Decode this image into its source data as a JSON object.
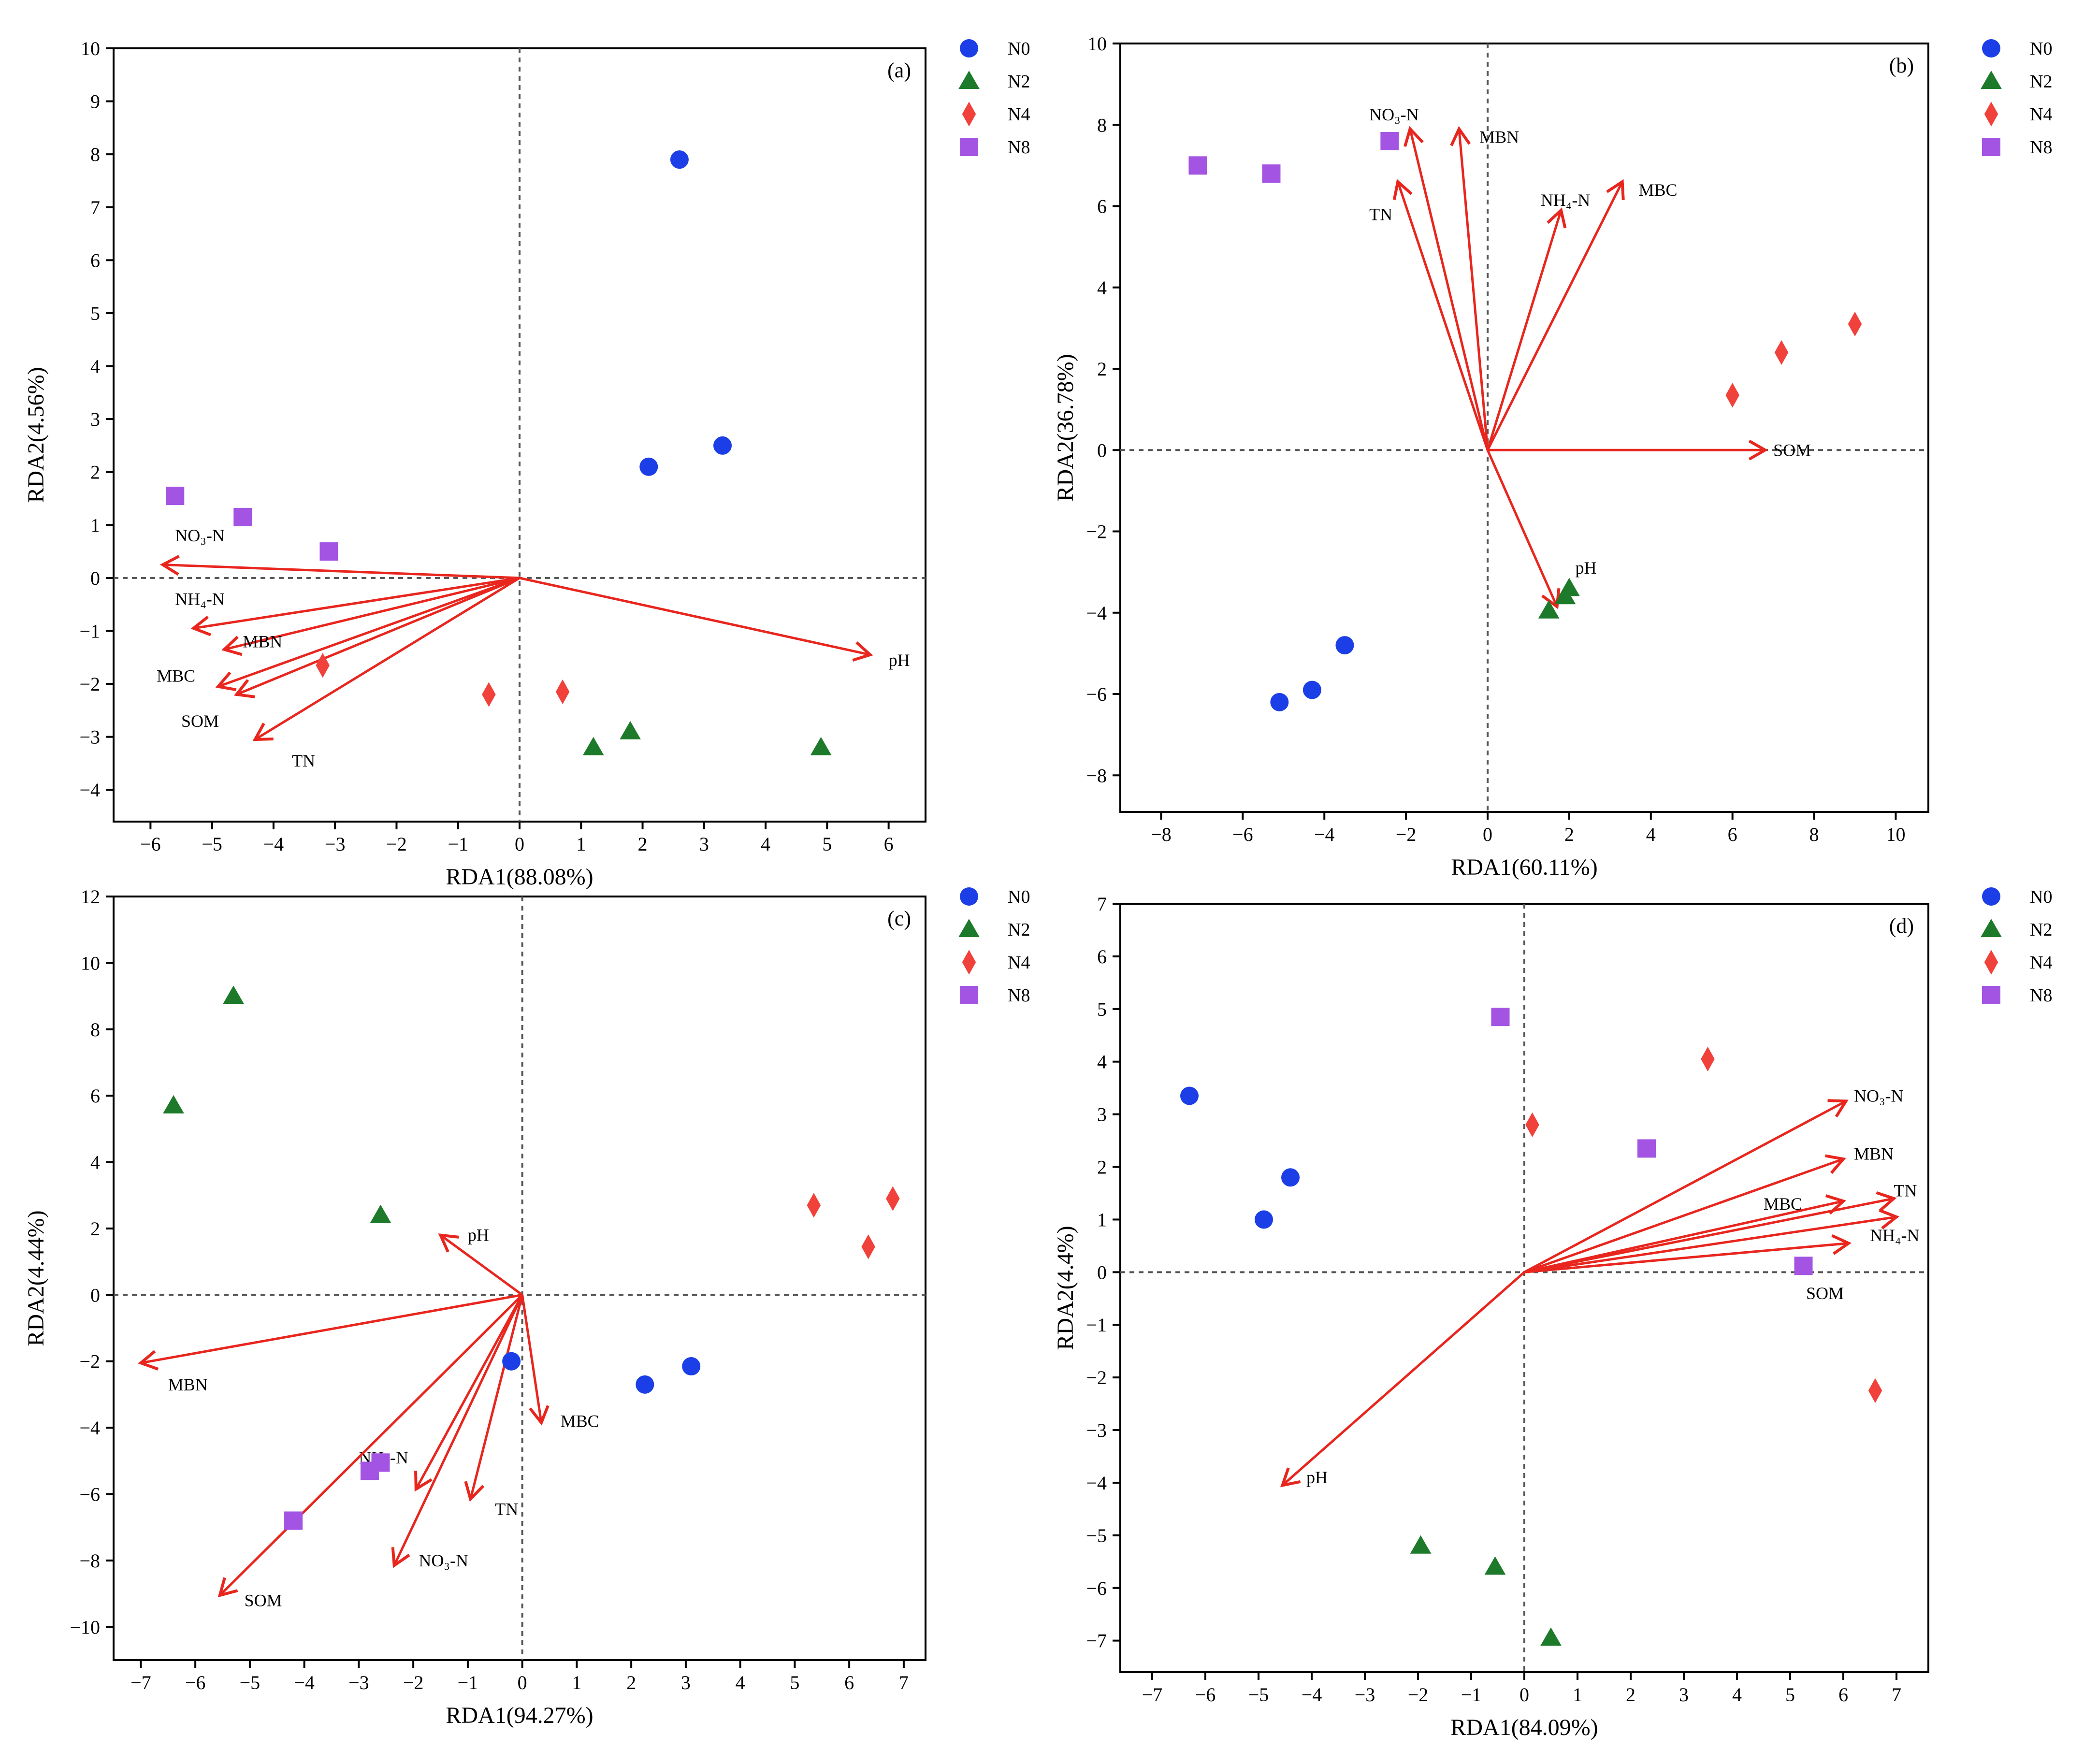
{
  "colors": {
    "N0": "#1c3ee6",
    "N2": "#1d7a2a",
    "N4": "#f0413a",
    "N8": "#a354e3",
    "arrow": "#e8261e",
    "axis": "#000000",
    "zero_line": "#555555"
  },
  "legend": [
    {
      "name": "N0",
      "marker": "circle"
    },
    {
      "name": "N2",
      "marker": "triangle"
    },
    {
      "name": "N4",
      "marker": "diamond"
    },
    {
      "name": "N8",
      "marker": "square"
    }
  ],
  "chart_data": [
    {
      "type": "scatter",
      "panel_label": "(a)",
      "xlabel": "RDA1(88.08%)",
      "ylabel": "RDA2(4.56%)",
      "xlim": [
        -6.6,
        6.6
      ],
      "ylim": [
        -4.6,
        10
      ],
      "xticks": [
        -6,
        -5,
        -4,
        -3,
        -2,
        -1,
        0,
        1,
        2,
        3,
        4,
        5,
        6
      ],
      "yticks": [
        -4,
        -3,
        -2,
        -1,
        0,
        1,
        2,
        3,
        4,
        5,
        6,
        7,
        8,
        9,
        10
      ],
      "series": [
        {
          "name": "N0",
          "points": [
            [
              2.6,
              7.9
            ],
            [
              3.3,
              2.5
            ],
            [
              2.1,
              2.1
            ]
          ]
        },
        {
          "name": "N2",
          "points": [
            [
              1.2,
              -3.2
            ],
            [
              1.8,
              -2.9
            ],
            [
              4.9,
              -3.2
            ]
          ]
        },
        {
          "name": "N4",
          "points": [
            [
              -3.2,
              -1.65
            ],
            [
              -0.5,
              -2.2
            ],
            [
              0.7,
              -2.15
            ]
          ]
        },
        {
          "name": "N8",
          "points": [
            [
              -5.6,
              1.55
            ],
            [
              -4.5,
              1.15
            ],
            [
              -3.1,
              0.5
            ]
          ]
        }
      ],
      "arrows": [
        {
          "label": "NO₃-N",
          "x": -5.8,
          "y": 0.25,
          "lx": -5.6,
          "ly": 0.8,
          "anchor": "start"
        },
        {
          "label": "NH₄-N",
          "x": -5.3,
          "y": -0.95,
          "lx": -5.6,
          "ly": -0.4,
          "anchor": "start"
        },
        {
          "label": "MBN",
          "x": -4.8,
          "y": -1.35,
          "lx": -4.5,
          "ly": -1.2,
          "anchor": "start"
        },
        {
          "label": "MBC",
          "x": -4.9,
          "y": -2.05,
          "lx": -5.9,
          "ly": -1.85,
          "anchor": "start"
        },
        {
          "label": "SOM",
          "x": -4.6,
          "y": -2.2,
          "lx": -5.5,
          "ly": -2.7,
          "anchor": "start"
        },
        {
          "label": "TN",
          "x": -4.3,
          "y": -3.05,
          "lx": -3.7,
          "ly": -3.45,
          "anchor": "start"
        },
        {
          "label": "pH",
          "x": 5.7,
          "y": -1.45,
          "lx": 6.0,
          "ly": -1.55,
          "anchor": "start"
        }
      ]
    },
    {
      "type": "scatter",
      "panel_label": "(b)",
      "xlabel": "RDA1(60.11%)",
      "ylabel": "RDA2(36.78%)",
      "xlim": [
        -9.0,
        10.8
      ],
      "ylim": [
        -8.9,
        10
      ],
      "xticks": [
        -8,
        -6,
        -4,
        -2,
        0,
        2,
        4,
        6,
        8,
        10
      ],
      "yticks": [
        -8,
        -6,
        -4,
        -2,
        0,
        2,
        4,
        6,
        8,
        10
      ],
      "series": [
        {
          "name": "N0",
          "points": [
            [
              -3.5,
              -4.8
            ],
            [
              -4.3,
              -5.9
            ],
            [
              -5.1,
              -6.2
            ]
          ]
        },
        {
          "name": "N2",
          "points": [
            [
              2.0,
              -3.4
            ],
            [
              1.9,
              -3.6
            ],
            [
              1.5,
              -3.95
            ]
          ]
        },
        {
          "name": "N4",
          "points": [
            [
              6.0,
              1.35
            ],
            [
              7.2,
              2.4
            ],
            [
              9.0,
              3.1
            ]
          ]
        },
        {
          "name": "N8",
          "points": [
            [
              -7.1,
              7.0
            ],
            [
              -5.3,
              6.8
            ],
            [
              -2.4,
              7.6
            ]
          ]
        }
      ],
      "arrows": [
        {
          "label": "NO₃-N",
          "x": -1.9,
          "y": 7.9,
          "lx": -2.9,
          "ly": 8.25,
          "anchor": "start"
        },
        {
          "label": "MBN",
          "x": -0.7,
          "y": 7.9,
          "lx": -0.2,
          "ly": 7.7,
          "anchor": "start"
        },
        {
          "label": "TN",
          "x": -2.2,
          "y": 6.6,
          "lx": -2.9,
          "ly": 5.8,
          "anchor": "start"
        },
        {
          "label": "NH₄-N",
          "x": 1.8,
          "y": 5.9,
          "lx": 1.3,
          "ly": 6.15,
          "anchor": "start"
        },
        {
          "label": "MBC",
          "x": 3.3,
          "y": 6.6,
          "lx": 3.7,
          "ly": 6.4,
          "anchor": "start"
        },
        {
          "label": "SOM",
          "x": 6.8,
          "y": 0.0,
          "lx": 7.0,
          "ly": 0.0,
          "anchor": "start"
        },
        {
          "label": "pH",
          "x": 1.7,
          "y": -3.85,
          "lx": 2.15,
          "ly": -2.9,
          "anchor": "start"
        }
      ]
    },
    {
      "type": "scatter",
      "panel_label": "(c)",
      "xlabel": "RDA1(94.27%)",
      "ylabel": "RDA2(4.44%)",
      "xlim": [
        -7.5,
        7.4
      ],
      "ylim": [
        -11,
        12
      ],
      "xticks": [
        -7,
        -6,
        -5,
        -4,
        -3,
        -2,
        -1,
        0,
        1,
        2,
        3,
        4,
        5,
        6,
        7
      ],
      "yticks": [
        -10,
        -8,
        -6,
        -4,
        -2,
        0,
        2,
        4,
        6,
        8,
        10,
        12
      ],
      "series": [
        {
          "name": "N0",
          "points": [
            [
              -0.2,
              -2.0
            ],
            [
              2.25,
              -2.7
            ],
            [
              3.1,
              -2.15
            ]
          ]
        },
        {
          "name": "N2",
          "points": [
            [
              -5.3,
              9.0
            ],
            [
              -6.4,
              5.7
            ],
            [
              -2.6,
              2.4
            ]
          ]
        },
        {
          "name": "N4",
          "points": [
            [
              5.35,
              2.7
            ],
            [
              6.35,
              1.45
            ],
            [
              6.8,
              2.9
            ]
          ]
        },
        {
          "name": "N8",
          "points": [
            [
              -2.6,
              -5.05
            ],
            [
              -2.8,
              -5.3
            ],
            [
              -4.2,
              -6.8
            ]
          ]
        }
      ],
      "arrows": [
        {
          "label": "pH",
          "x": -1.5,
          "y": 1.8,
          "lx": -1.0,
          "ly": 1.8,
          "anchor": "start"
        },
        {
          "label": "MBN",
          "x": -7.0,
          "y": -2.05,
          "lx": -6.5,
          "ly": -2.7,
          "anchor": "start"
        },
        {
          "label": "MBC",
          "x": 0.35,
          "y": -3.85,
          "lx": 0.7,
          "ly": -3.8,
          "anchor": "start"
        },
        {
          "label": "NH₄-N",
          "x": -1.95,
          "y": -5.85,
          "lx": -3.0,
          "ly": -4.9,
          "anchor": "start"
        },
        {
          "label": "TN",
          "x": -0.95,
          "y": -6.15,
          "lx": -0.5,
          "ly": -6.45,
          "anchor": "start"
        },
        {
          "label": "NO₃-N",
          "x": -2.35,
          "y": -8.15,
          "lx": -1.9,
          "ly": -8.0,
          "anchor": "start"
        },
        {
          "label": "SOM",
          "x": -5.55,
          "y": -9.05,
          "lx": -5.1,
          "ly": -9.2,
          "anchor": "start"
        }
      ]
    },
    {
      "type": "scatter",
      "panel_label": "(d)",
      "xlabel": "RDA1(84.09%)",
      "ylabel": "RDA2(4.4%)",
      "xlim": [
        -7.6,
        7.6
      ],
      "ylim": [
        -7.6,
        7
      ],
      "xticks": [
        -7,
        -6,
        -5,
        -4,
        -3,
        -2,
        -1,
        0,
        1,
        2,
        3,
        4,
        5,
        6,
        7
      ],
      "yticks": [
        -7,
        -6,
        -5,
        -4,
        -3,
        -2,
        -1,
        0,
        1,
        2,
        3,
        4,
        5,
        6,
        7
      ],
      "series": [
        {
          "name": "N0",
          "points": [
            [
              -6.3,
              3.35
            ],
            [
              -4.4,
              1.8
            ],
            [
              -4.9,
              1.0
            ]
          ]
        },
        {
          "name": "N2",
          "points": [
            [
              -1.95,
              -5.2
            ],
            [
              -0.55,
              -5.6
            ],
            [
              0.5,
              -6.95
            ]
          ]
        },
        {
          "name": "N4",
          "points": [
            [
              0.15,
              2.8
            ],
            [
              3.45,
              4.05
            ],
            [
              6.6,
              -2.25
            ]
          ]
        },
        {
          "name": "N8",
          "points": [
            [
              -0.45,
              4.85
            ],
            [
              2.3,
              2.35
            ],
            [
              5.25,
              0.12
            ]
          ]
        }
      ],
      "arrows": [
        {
          "label": "NO₃-N",
          "x": 6.05,
          "y": 3.25,
          "lx": 6.2,
          "ly": 3.35,
          "anchor": "start"
        },
        {
          "label": "MBN",
          "x": 6.0,
          "y": 2.15,
          "lx": 6.2,
          "ly": 2.25,
          "anchor": "start"
        },
        {
          "label": "MBC",
          "x": 6.0,
          "y": 1.35,
          "lx": 4.5,
          "ly": 1.3,
          "anchor": "start"
        },
        {
          "label": "TN",
          "x": 6.95,
          "y": 1.4,
          "lx": 6.95,
          "ly": 1.55,
          "anchor": "start"
        },
        {
          "label": "NH₄-N",
          "x": 7.0,
          "y": 1.05,
          "lx": 6.5,
          "ly": 0.7,
          "anchor": "start"
        },
        {
          "label": "SOM",
          "x": 6.1,
          "y": 0.55,
          "lx": 5.3,
          "ly": -0.4,
          "anchor": "start"
        },
        {
          "label": "pH",
          "x": -4.55,
          "y": -4.05,
          "lx": -4.1,
          "ly": -3.9,
          "anchor": "start"
        }
      ]
    }
  ]
}
